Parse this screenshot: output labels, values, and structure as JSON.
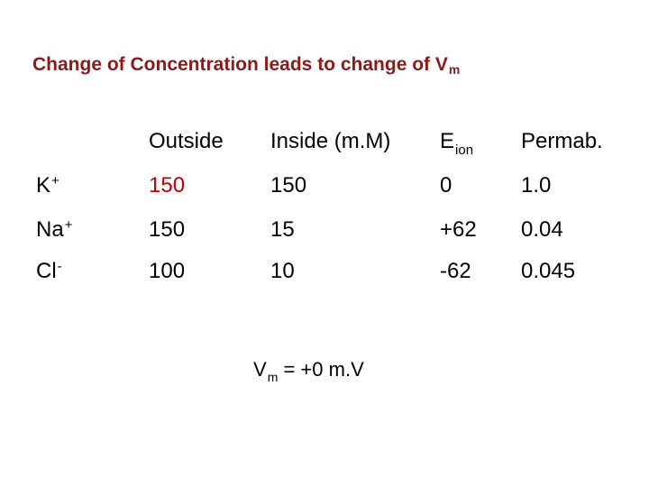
{
  "title": {
    "text": "Change of Concentration leads to change of V",
    "sub": "m"
  },
  "headers": {
    "outside": "Outside",
    "inside": "Inside (m.M)",
    "eion_main": "E",
    "eion_sub": "ion",
    "permab": "Permab."
  },
  "rows": [
    {
      "ion": "K",
      "charge": "+",
      "outside": "150",
      "inside": "150",
      "eion": "0",
      "permab": "1.0"
    },
    {
      "ion": "Na",
      "charge": "+",
      "outside": "150",
      "inside": "15",
      "eion": "+62",
      "permab": "0.04"
    },
    {
      "ion": "Cl",
      "charge": "-",
      "outside": "100",
      "inside": "10",
      "eion": "-62",
      "permab": "0.045"
    }
  ],
  "vm": {
    "main": "V",
    "sub": "m",
    "rest": " = +0 m.V"
  },
  "colors": {
    "title": "#8B1A1A",
    "highlight": "#C00000"
  }
}
